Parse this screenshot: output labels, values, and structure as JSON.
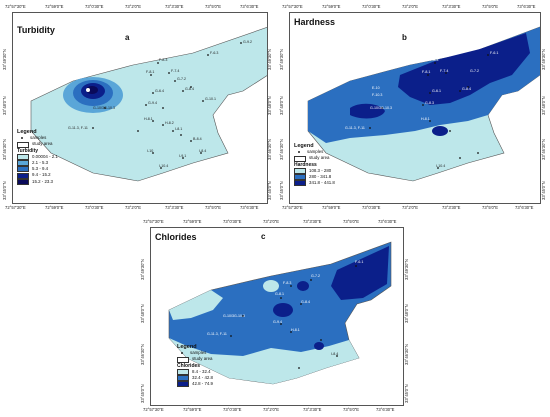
{
  "colors": {
    "class1": "#bde7ea",
    "class2": "#5aa6d8",
    "class3": "#2b6fc0",
    "class4": "#0b1f8a",
    "class5": "#0a0a5a",
    "study_area_outline": "#555555",
    "sample_dot": "#111111"
  },
  "coords_x": [
    "72°57'30\"E",
    "72°59'0\"E",
    "73°0'30\"E",
    "73°2'0\"E",
    "73°3'30\"E",
    "73°5'0\"E",
    "73°6'30\"E"
  ],
  "coords_y": [
    "33°49'30\"N",
    "33°48'0\"N",
    "33°46'30\"N",
    "33°45'0\"N"
  ],
  "panels": {
    "turbidity": {
      "title": "Turbidity",
      "letter": "a",
      "legend": {
        "heading": "Legend",
        "samples": "samples",
        "study_area": "study area",
        "variable": "Turbidity",
        "classes": [
          "0.00004 - 2.1",
          "2.1 - 5.3",
          "5.3 - 9.4",
          "9.4 - 15.2",
          "15.2 - 23.3"
        ]
      },
      "sample_labels": [
        "G-9.2",
        "F-6.3",
        "F-8.1",
        "F-8.3",
        "F-7.4",
        "G-7.2",
        "F-9.1",
        "G-6.4",
        "G-8.3",
        "G-8.4",
        "G-10.1",
        "G-10/3G-10.3",
        "G-11.3, F-11",
        "B-6.4",
        "G-9.4",
        "H-8.1",
        "H-8.2",
        "I-8.1",
        "I-9.1",
        "I-10",
        "I-10.4",
        "I-8.4",
        "B-8.4"
      ]
    },
    "hardness": {
      "title": "Hardness",
      "letter": "b",
      "legend": {
        "heading": "Legend",
        "samples": "samples",
        "study_area": "study area",
        "variable": "Hardness",
        "classes": [
          "108.3 - 280",
          "280 - 341.8",
          "341.8 - 441.8"
        ]
      },
      "sample_labels": [
        "F-6.1",
        "F-8.3",
        "F-8.1",
        "F-7.4",
        "G-7.2",
        "G-8.4",
        "G-6.1",
        "E-10",
        "F-10.3",
        "G-10/3G-10.3",
        "G-8.3",
        "G-11.3, F-11",
        "H-8.1",
        "I-10.4"
      ]
    },
    "chlorides": {
      "title": "Chlorides",
      "letter": "c",
      "legend": {
        "heading": "Legend",
        "samples": "samples",
        "study_area": "study area",
        "variable": "Chlorides",
        "classes": [
          "8.4 - 32.4",
          "32.4 - 42.8",
          "42.8 - 74.9"
        ]
      },
      "sample_labels": [
        "F-6.1",
        "G-7.2",
        "F-8.3",
        "G-8.1",
        "G-8.4",
        "G-10/3G-10.3",
        "G-11.3, F-11",
        "G-9.4",
        "H-8.1",
        "I-8.4"
      ]
    }
  }
}
